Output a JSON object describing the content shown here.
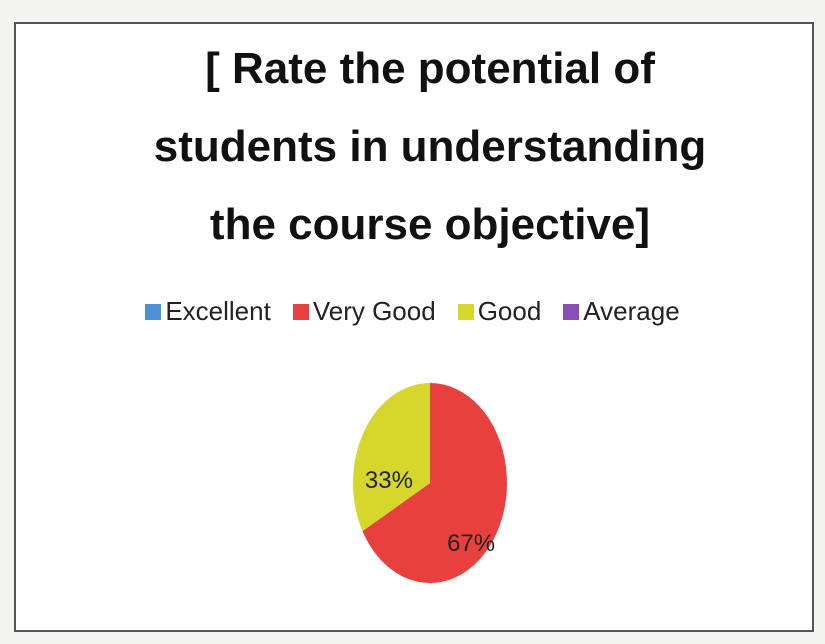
{
  "chart_data": {
    "type": "pie",
    "title": "[ Rate the potential of students in understanding the course objective]",
    "categories": [
      "Excellent",
      "Very Good",
      "Good",
      "Average"
    ],
    "values": [
      0,
      67,
      33,
      0
    ],
    "value_labels": [
      null,
      "67%",
      "33%",
      null
    ],
    "colors": [
      "#4f8fd6",
      "#e8403e",
      "#d6d62c",
      "#8a4fb5"
    ],
    "legend": "top"
  }
}
